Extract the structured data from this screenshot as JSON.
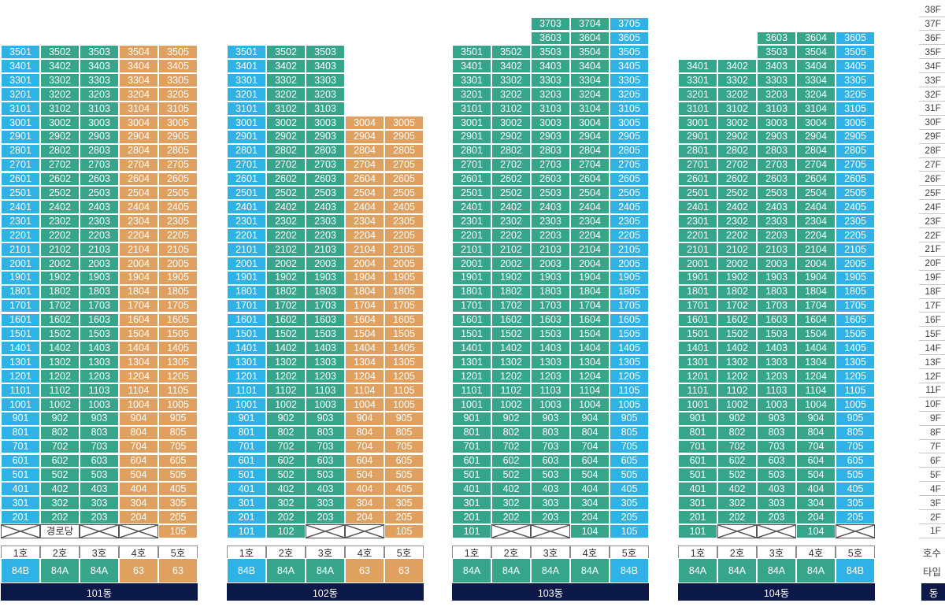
{
  "colors": {
    "blue": "#2fb2e6",
    "green": "#36a58c",
    "orange": "#dfa060",
    "navy": "#0b1848"
  },
  "legend": {
    "unit_label": "호수",
    "type_label": "타입",
    "dong_label": "동"
  },
  "floors": [
    "38F",
    "37F",
    "36F",
    "35F",
    "34F",
    "33F",
    "32F",
    "31F",
    "30F",
    "29F",
    "28F",
    "27F",
    "26F",
    "25F",
    "24F",
    "23F",
    "22F",
    "21F",
    "20F",
    "19F",
    "18F",
    "17F",
    "16F",
    "15F",
    "14F",
    "13F",
    "12F",
    "11F",
    "10F",
    "9F",
    "8F",
    "7F",
    "6F",
    "5F",
    "4F",
    "3F",
    "2F",
    "1F"
  ],
  "buildings": [
    {
      "name": "101동",
      "columns": [
        {
          "unit": "1호",
          "type": "84B",
          "color": "blue",
          "top": 35
        },
        {
          "unit": "2호",
          "type": "84A",
          "color": "green",
          "top": 35
        },
        {
          "unit": "3호",
          "type": "84A",
          "color": "green",
          "top": 35
        },
        {
          "unit": "4호",
          "type": "63",
          "color": "orange",
          "top": 35
        },
        {
          "unit": "5호",
          "type": "63",
          "color": "orange",
          "top": 35
        }
      ],
      "first_floor": [
        {
          "kind": "empty"
        },
        {
          "kind": "label",
          "text": "경로당"
        },
        {
          "kind": "empty"
        },
        {
          "kind": "empty"
        },
        {
          "kind": "unit",
          "text": "105"
        }
      ]
    },
    {
      "name": "102동",
      "columns": [
        {
          "unit": "1호",
          "type": "84B",
          "color": "blue",
          "top": 35
        },
        {
          "unit": "2호",
          "type": "84A",
          "color": "green",
          "top": 35
        },
        {
          "unit": "3호",
          "type": "84A",
          "color": "green",
          "top": 35
        },
        {
          "unit": "4호",
          "type": "63",
          "color": "orange",
          "top": 30
        },
        {
          "unit": "5호",
          "type": "63",
          "color": "orange",
          "top": 30
        }
      ],
      "first_floor": [
        {
          "kind": "unit",
          "text": "101"
        },
        {
          "kind": "unit",
          "text": "102"
        },
        {
          "kind": "empty"
        },
        {
          "kind": "empty"
        },
        {
          "kind": "unit",
          "text": "105"
        }
      ]
    },
    {
      "name": "103동",
      "columns": [
        {
          "unit": "1호",
          "type": "84A",
          "color": "green",
          "top": 35
        },
        {
          "unit": "2호",
          "type": "84A",
          "color": "green",
          "top": 35
        },
        {
          "unit": "3호",
          "type": "84A",
          "color": "green",
          "top": 37
        },
        {
          "unit": "4호",
          "type": "84A",
          "color": "green",
          "top": 37
        },
        {
          "unit": "5호",
          "type": "84B",
          "color": "blue",
          "top": 37
        }
      ],
      "first_floor": [
        {
          "kind": "unit",
          "text": "101"
        },
        {
          "kind": "empty"
        },
        {
          "kind": "empty"
        },
        {
          "kind": "unit",
          "text": "104"
        },
        {
          "kind": "unit",
          "text": "105"
        }
      ]
    },
    {
      "name": "104동",
      "columns": [
        {
          "unit": "1호",
          "type": "84A",
          "color": "green",
          "top": 34
        },
        {
          "unit": "2호",
          "type": "84A",
          "color": "green",
          "top": 34
        },
        {
          "unit": "3호",
          "type": "84A",
          "color": "green",
          "top": 36
        },
        {
          "unit": "4호",
          "type": "84A",
          "color": "green",
          "top": 36
        },
        {
          "unit": "5호",
          "type": "84B",
          "color": "blue",
          "top": 36
        }
      ],
      "first_floor": [
        {
          "kind": "unit",
          "text": "101"
        },
        {
          "kind": "empty"
        },
        {
          "kind": "empty"
        },
        {
          "kind": "unit",
          "text": "104"
        },
        {
          "kind": "empty"
        }
      ]
    }
  ]
}
